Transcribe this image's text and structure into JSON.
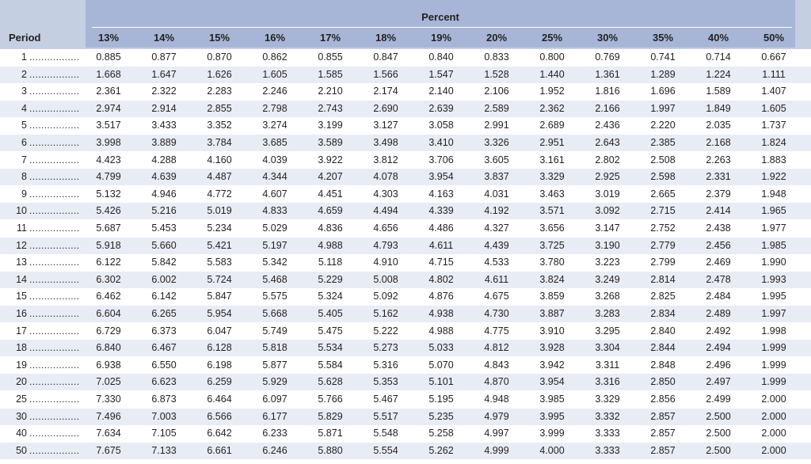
{
  "table": {
    "group_header": "Percent",
    "period_header": "Period",
    "columns": [
      "13%",
      "14%",
      "15%",
      "16%",
      "17%",
      "18%",
      "19%",
      "20%",
      "25%",
      "30%",
      "35%",
      "40%",
      "50%"
    ],
    "leader": "...................",
    "rows": [
      {
        "period": "1",
        "values": [
          "0.885",
          "0.877",
          "0.870",
          "0.862",
          "0.855",
          "0.847",
          "0.840",
          "0.833",
          "0.800",
          "0.769",
          "0.741",
          "0.714",
          "0.667"
        ]
      },
      {
        "period": "2",
        "values": [
          "1.668",
          "1.647",
          "1.626",
          "1.605",
          "1.585",
          "1.566",
          "1.547",
          "1.528",
          "1.440",
          "1.361",
          "1.289",
          "1.224",
          "1.111"
        ]
      },
      {
        "period": "3",
        "values": [
          "2.361",
          "2.322",
          "2.283",
          "2.246",
          "2.210",
          "2.174",
          "2.140",
          "2.106",
          "1.952",
          "1.816",
          "1.696",
          "1.589",
          "1.407"
        ]
      },
      {
        "period": "4",
        "values": [
          "2.974",
          "2.914",
          "2.855",
          "2.798",
          "2.743",
          "2.690",
          "2.639",
          "2.589",
          "2.362",
          "2.166",
          "1.997",
          "1.849",
          "1.605"
        ]
      },
      {
        "period": "5",
        "values": [
          "3.517",
          "3.433",
          "3.352",
          "3.274",
          "3.199",
          "3.127",
          "3.058",
          "2.991",
          "2.689",
          "2.436",
          "2.220",
          "2.035",
          "1.737"
        ]
      },
      {
        "period": "6",
        "values": [
          "3.998",
          "3.889",
          "3.784",
          "3.685",
          "3.589",
          "3.498",
          "3.410",
          "3.326",
          "2.951",
          "2.643",
          "2.385",
          "2.168",
          "1.824"
        ]
      },
      {
        "period": "7",
        "values": [
          "4.423",
          "4.288",
          "4.160",
          "4.039",
          "3.922",
          "3.812",
          "3.706",
          "3.605",
          "3.161",
          "2.802",
          "2.508",
          "2.263",
          "1.883"
        ]
      },
      {
        "period": "8",
        "values": [
          "4.799",
          "4.639",
          "4.487",
          "4.344",
          "4.207",
          "4.078",
          "3.954",
          "3.837",
          "3.329",
          "2.925",
          "2.598",
          "2.331",
          "1.922"
        ]
      },
      {
        "period": "9",
        "values": [
          "5.132",
          "4.946",
          "4.772",
          "4.607",
          "4.451",
          "4.303",
          "4.163",
          "4.031",
          "3.463",
          "3.019",
          "2.665",
          "2.379",
          "1.948"
        ]
      },
      {
        "period": "10",
        "values": [
          "5.426",
          "5.216",
          "5.019",
          "4.833",
          "4.659",
          "4.494",
          "4.339",
          "4.192",
          "3.571",
          "3.092",
          "2.715",
          "2.414",
          "1.965"
        ]
      },
      {
        "period": "11",
        "values": [
          "5.687",
          "5.453",
          "5.234",
          "5.029",
          "4.836",
          "4.656",
          "4.486",
          "4.327",
          "3.656",
          "3.147",
          "2.752",
          "2.438",
          "1.977"
        ]
      },
      {
        "period": "12",
        "values": [
          "5.918",
          "5.660",
          "5.421",
          "5.197",
          "4.988",
          "4.793",
          "4.611",
          "4.439",
          "3.725",
          "3.190",
          "2.779",
          "2.456",
          "1.985"
        ]
      },
      {
        "period": "13",
        "values": [
          "6.122",
          "5.842",
          "5.583",
          "5.342",
          "5.118",
          "4.910",
          "4.715",
          "4.533",
          "3.780",
          "3.223",
          "2.799",
          "2.469",
          "1.990"
        ]
      },
      {
        "period": "14",
        "values": [
          "6.302",
          "6.002",
          "5.724",
          "5.468",
          "5.229",
          "5.008",
          "4.802",
          "4.611",
          "3.824",
          "3.249",
          "2.814",
          "2.478",
          "1.993"
        ]
      },
      {
        "period": "15",
        "values": [
          "6.462",
          "6.142",
          "5.847",
          "5.575",
          "5.324",
          "5.092",
          "4.876",
          "4.675",
          "3.859",
          "3.268",
          "2.825",
          "2.484",
          "1.995"
        ]
      },
      {
        "period": "16",
        "values": [
          "6.604",
          "6.265",
          "5.954",
          "5.668",
          "5.405",
          "5.162",
          "4.938",
          "4.730",
          "3.887",
          "3.283",
          "2.834",
          "2.489",
          "1.997"
        ]
      },
      {
        "period": "17",
        "values": [
          "6.729",
          "6.373",
          "6.047",
          "5.749",
          "5.475",
          "5.222",
          "4.988",
          "4.775",
          "3.910",
          "3.295",
          "2.840",
          "2.492",
          "1.998"
        ]
      },
      {
        "period": "18",
        "values": [
          "6.840",
          "6.467",
          "6.128",
          "5.818",
          "5.534",
          "5.273",
          "5.033",
          "4.812",
          "3.928",
          "3.304",
          "2.844",
          "2.494",
          "1.999"
        ]
      },
      {
        "period": "19",
        "values": [
          "6.938",
          "6.550",
          "6.198",
          "5.877",
          "5.584",
          "5.316",
          "5.070",
          "4.843",
          "3.942",
          "3.311",
          "2.848",
          "2.496",
          "1.999"
        ]
      },
      {
        "period": "20",
        "values": [
          "7.025",
          "6.623",
          "6.259",
          "5.929",
          "5.628",
          "5.353",
          "5.101",
          "4.870",
          "3.954",
          "3.316",
          "2.850",
          "2.497",
          "1.999"
        ]
      },
      {
        "period": "25",
        "values": [
          "7.330",
          "6.873",
          "6.464",
          "6.097",
          "5.766",
          "5.467",
          "5.195",
          "4.948",
          "3.985",
          "3.329",
          "2.856",
          "2.499",
          "2.000"
        ]
      },
      {
        "period": "30",
        "values": [
          "7.496",
          "7.003",
          "6.566",
          "6.177",
          "5.829",
          "5.517",
          "5.235",
          "4.979",
          "3.995",
          "3.332",
          "2.857",
          "2.500",
          "2.000"
        ]
      },
      {
        "period": "40",
        "values": [
          "7.634",
          "7.105",
          "6.642",
          "6.233",
          "5.871",
          "5.548",
          "5.258",
          "4.997",
          "3.999",
          "3.333",
          "2.857",
          "2.500",
          "2.000"
        ]
      },
      {
        "period": "50",
        "values": [
          "7.675",
          "7.133",
          "6.661",
          "6.246",
          "5.880",
          "5.554",
          "5.262",
          "4.999",
          "4.000",
          "3.333",
          "2.857",
          "2.500",
          "2.000"
        ]
      }
    ]
  },
  "colors": {
    "header_band": "#a7b6d6",
    "header_outer": "#c5cfe2",
    "row_stripe": "#e8ecf4",
    "text": "#231f20"
  }
}
